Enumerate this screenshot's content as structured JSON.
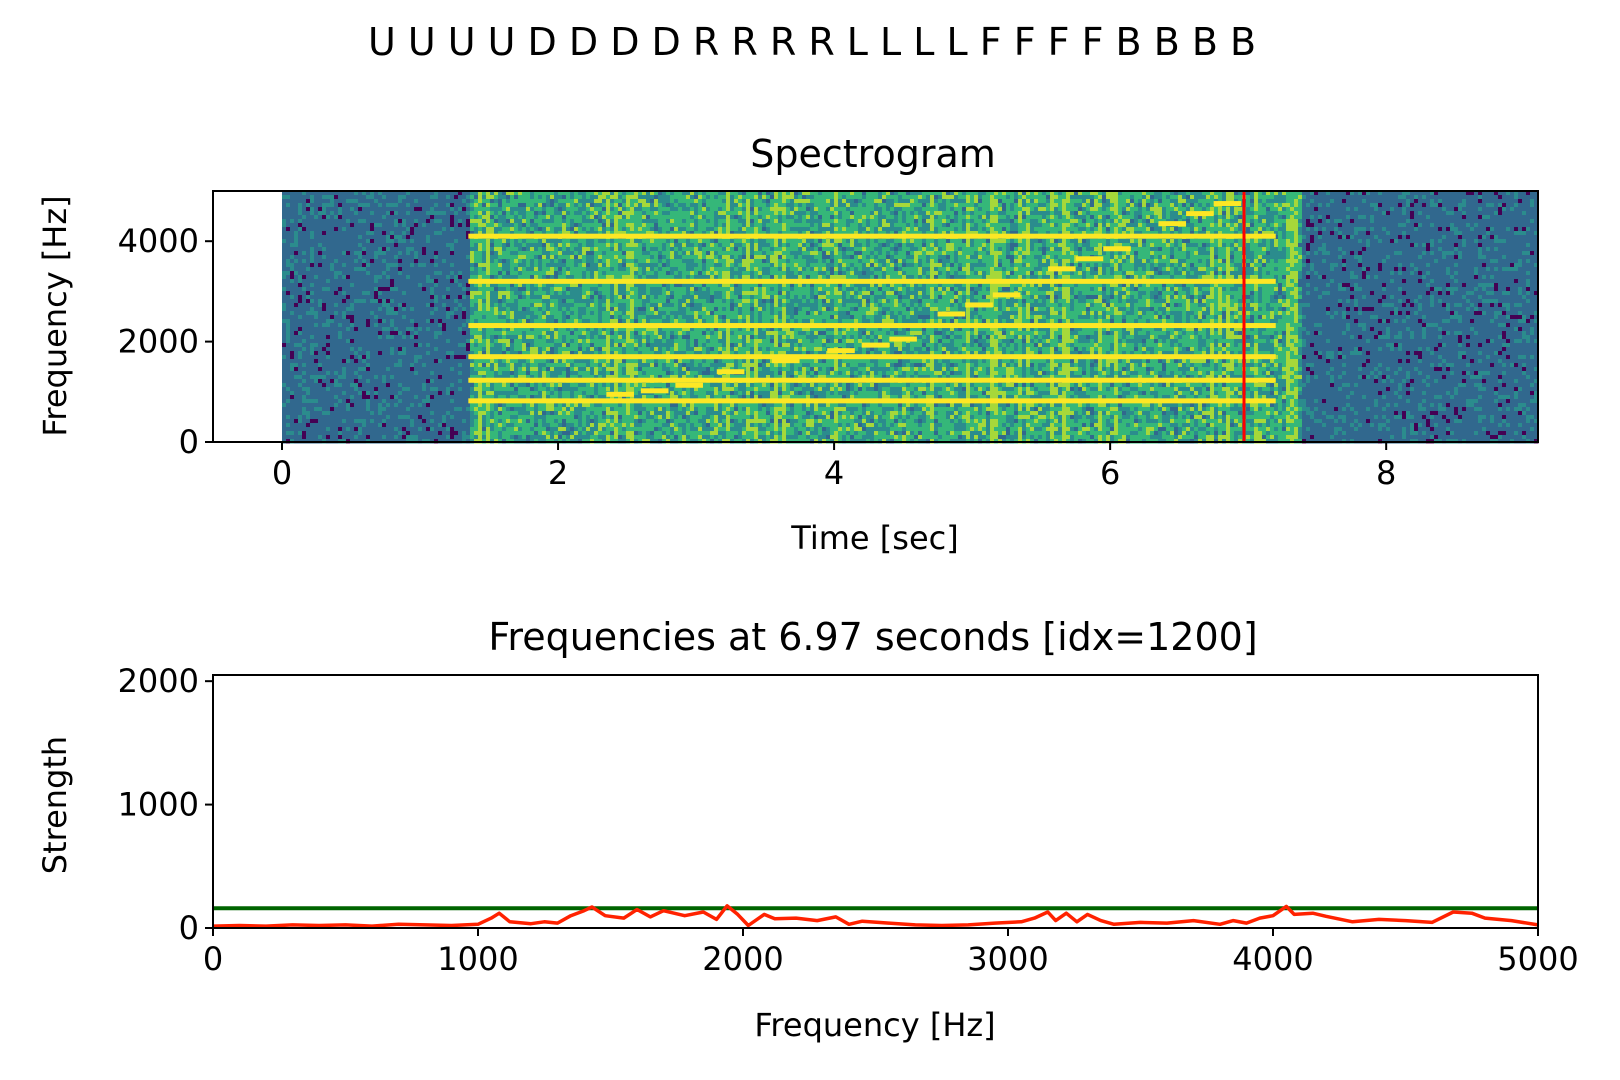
{
  "suptitle": "U U U U D D D D R R R R L L L L F F F F B B B B",
  "chart_data": [
    {
      "type": "heatmap",
      "title": "Spectrogram",
      "xlabel": "Time [sec]",
      "ylabel": "Frequency [Hz]",
      "xlim": [
        -0.5,
        9.1
      ],
      "ylim": [
        0,
        5000
      ],
      "xticks": [
        0,
        2,
        4,
        6,
        8
      ],
      "yticks": [
        0,
        2000,
        4000
      ],
      "signal_start": 0,
      "signal_end": 9.1,
      "active_start": 1.35,
      "active_end": 7.38,
      "cursor_time": 6.97,
      "colormap": [
        "#440154",
        "#31688e",
        "#2b8c8d",
        "#35b779",
        "#a6d83a",
        "#fde725"
      ],
      "cursor_color": "#ff0000",
      "steady_tones": [
        {
          "freq": 820,
          "start": 1.35,
          "end": 7.2
        },
        {
          "freq": 1230,
          "start": 1.35,
          "end": 7.2
        },
        {
          "freq": 1700,
          "start": 1.35,
          "end": 7.2
        },
        {
          "freq": 2320,
          "start": 1.35,
          "end": 7.2
        },
        {
          "freq": 3200,
          "start": 1.35,
          "end": 7.2
        },
        {
          "freq": 4100,
          "start": 1.35,
          "end": 7.2
        }
      ],
      "sweep_tones": [
        {
          "freq": 950,
          "start": 2.35,
          "end": 2.55
        },
        {
          "freq": 1020,
          "start": 2.6,
          "end": 2.8
        },
        {
          "freq": 1130,
          "start": 2.85,
          "end": 3.05
        },
        {
          "freq": 1400,
          "start": 3.15,
          "end": 3.35
        },
        {
          "freq": 1620,
          "start": 3.55,
          "end": 3.75
        },
        {
          "freq": 1820,
          "start": 3.95,
          "end": 4.15
        },
        {
          "freq": 1930,
          "start": 4.2,
          "end": 4.4
        },
        {
          "freq": 2050,
          "start": 4.4,
          "end": 4.6
        },
        {
          "freq": 2550,
          "start": 4.75,
          "end": 4.95
        },
        {
          "freq": 2730,
          "start": 4.95,
          "end": 5.15
        },
        {
          "freq": 2930,
          "start": 5.15,
          "end": 5.35
        },
        {
          "freq": 3450,
          "start": 5.55,
          "end": 5.75
        },
        {
          "freq": 3650,
          "start": 5.75,
          "end": 5.95
        },
        {
          "freq": 3850,
          "start": 5.95,
          "end": 6.15
        },
        {
          "freq": 4350,
          "start": 6.35,
          "end": 6.55
        },
        {
          "freq": 4550,
          "start": 6.55,
          "end": 6.75
        },
        {
          "freq": 4750,
          "start": 6.75,
          "end": 6.95
        }
      ]
    },
    {
      "type": "line",
      "title": "Frequencies at 6.97 seconds [idx=1200]",
      "xlabel": "Frequency [Hz]",
      "ylabel": "Strength",
      "xlim": [
        0,
        5000
      ],
      "ylim": [
        0,
        2050
      ],
      "xticks": [
        0,
        1000,
        2000,
        3000,
        4000,
        5000
      ],
      "yticks": [
        0,
        1000,
        2000
      ],
      "threshold": 160,
      "threshold_color": "#006400",
      "line_color": "#ff2200",
      "series": [
        {
          "x": [
            0,
            100,
            200,
            300,
            400,
            500,
            600,
            700,
            800,
            900,
            1000,
            1050,
            1080,
            1120,
            1200,
            1250,
            1300,
            1350,
            1400,
            1430,
            1480,
            1550,
            1600,
            1650,
            1700,
            1780,
            1850,
            1900,
            1940,
            1980,
            2020,
            2080,
            2120,
            2200,
            2280,
            2350,
            2400,
            2450,
            2550,
            2650,
            2750,
            2850,
            2950,
            3050,
            3100,
            3150,
            3180,
            3220,
            3260,
            3300,
            3350,
            3400,
            3500,
            3600,
            3700,
            3800,
            3850,
            3900,
            3950,
            4000,
            4050,
            4080,
            4150,
            4200,
            4300,
            4400,
            4500,
            4600,
            4680,
            4750,
            4800,
            4900,
            5000
          ],
          "y": [
            15,
            20,
            15,
            25,
            20,
            25,
            15,
            30,
            25,
            20,
            30,
            80,
            120,
            50,
            35,
            50,
            40,
            100,
            140,
            170,
            100,
            80,
            150,
            90,
            140,
            100,
            130,
            70,
            180,
            110,
            20,
            110,
            75,
            80,
            60,
            90,
            30,
            55,
            40,
            25,
            20,
            25,
            40,
            50,
            80,
            130,
            60,
            120,
            50,
            110,
            60,
            30,
            45,
            40,
            60,
            30,
            60,
            40,
            80,
            100,
            175,
            110,
            120,
            95,
            50,
            70,
            60,
            45,
            130,
            120,
            80,
            60,
            25
          ]
        }
      ]
    }
  ]
}
